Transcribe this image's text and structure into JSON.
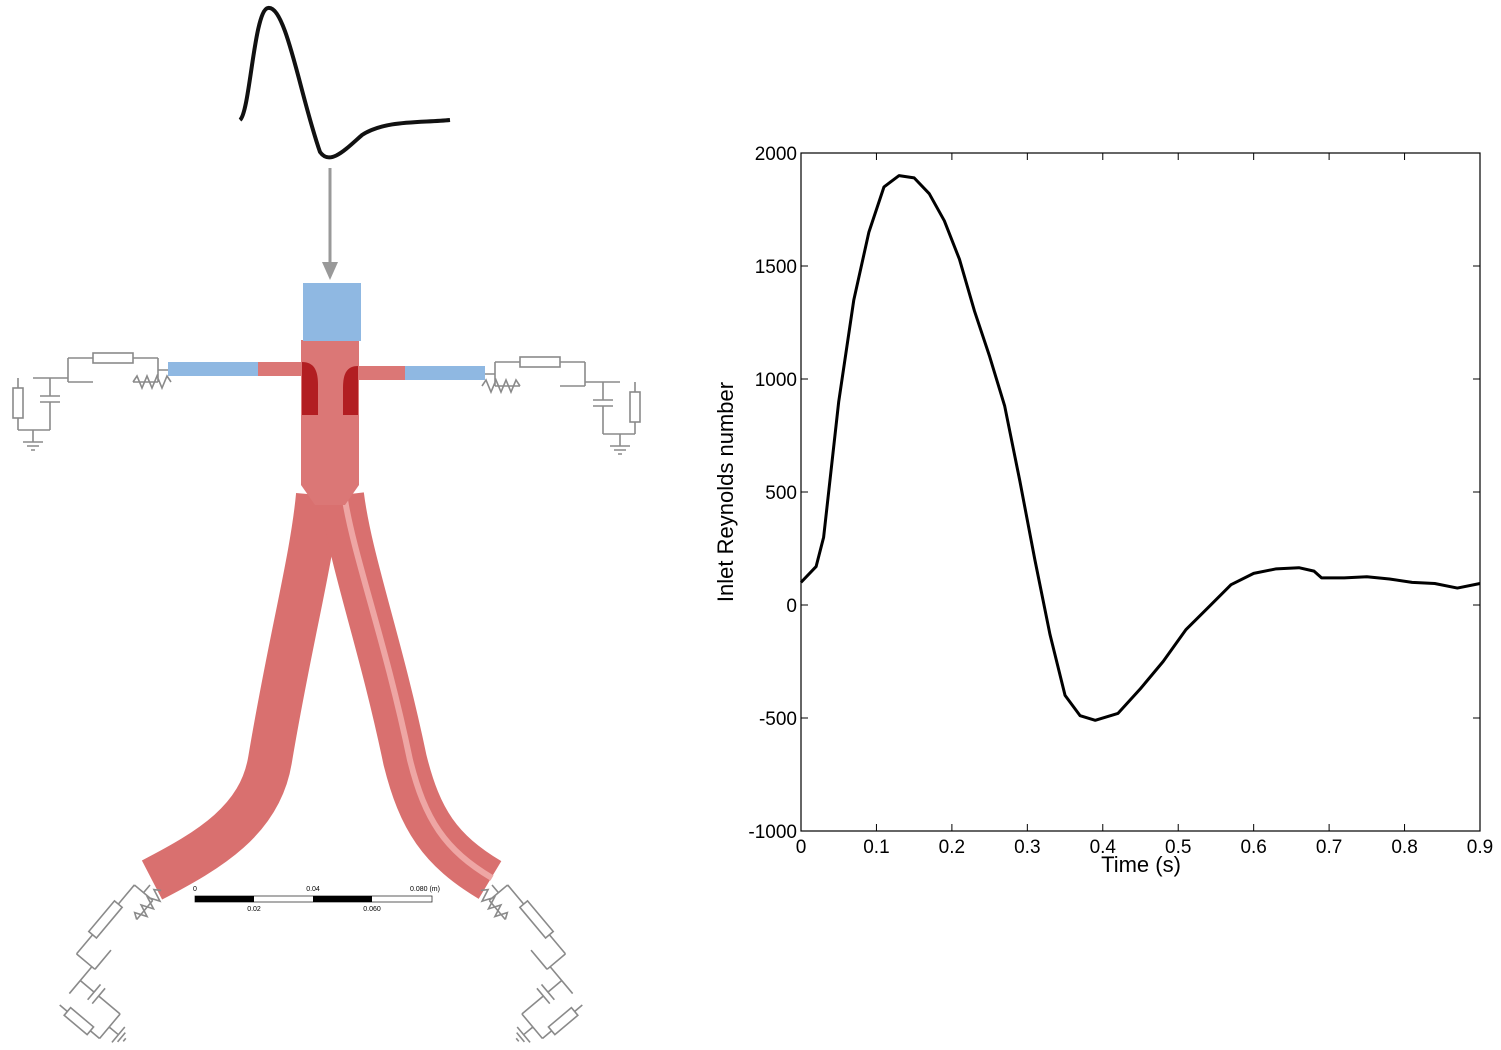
{
  "chart_data": {
    "type": "line",
    "xlabel": "Time (s)",
    "ylabel": "Inlet Reynolds number",
    "x": [
      0,
      0.02,
      0.03,
      0.05,
      0.07,
      0.09,
      0.11,
      0.13,
      0.15,
      0.17,
      0.19,
      0.21,
      0.23,
      0.25,
      0.27,
      0.29,
      0.31,
      0.33,
      0.35,
      0.37,
      0.39,
      0.42,
      0.45,
      0.48,
      0.51,
      0.54,
      0.57,
      0.6,
      0.63,
      0.66,
      0.68,
      0.69,
      0.72,
      0.75,
      0.78,
      0.81,
      0.84,
      0.87,
      0.9
    ],
    "series": [
      {
        "color": "#000000",
        "values": [
          100,
          170,
          300,
          900,
          1350,
          1650,
          1850,
          1900,
          1890,
          1820,
          1700,
          1530,
          1300,
          1100,
          880,
          550,
          200,
          -130,
          -400,
          -490,
          -510,
          -480,
          -370,
          -250,
          -110,
          -10,
          90,
          140,
          160,
          165,
          150,
          120,
          120,
          125,
          115,
          100,
          95,
          75,
          95
        ]
      }
    ],
    "xlim": [
      0,
      0.9
    ],
    "xticks": [
      0,
      0.1,
      0.2,
      0.3,
      0.4,
      0.5,
      0.6,
      0.7,
      0.8,
      0.9
    ],
    "ylim": [
      -1000,
      2000
    ],
    "yticks": [
      -1000,
      -500,
      0,
      500,
      1000,
      1500,
      2000
    ],
    "grid": false
  },
  "diagram": {
    "scale_bar": {
      "top_labels": [
        "0",
        "0.04",
        "0.080 (m)"
      ],
      "bottom_labels": [
        "0.02",
        "0.060"
      ]
    }
  }
}
